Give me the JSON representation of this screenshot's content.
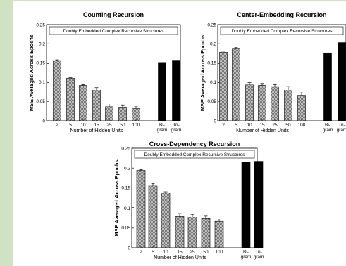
{
  "colors": {
    "background": "#cfe3c2",
    "sheet": "#ffffff",
    "srn_bar": "#bdbdbd",
    "ngram_bar": "#000000"
  },
  "chart_data": [
    {
      "type": "bar",
      "title": "Counting Recursion",
      "box_label": "Doubly Embedded Complex Recursive Structures",
      "ylabel": "MSE Averaged Across Epochs",
      "xlabel": "Number of Hidden Units",
      "ylim": [
        0,
        0.25
      ],
      "yticks": [
        "0",
        "0.05",
        "0.1",
        "0.15",
        "0.2",
        "0.25"
      ],
      "categories": [
        "2",
        "5",
        "10",
        "15",
        "25",
        "50",
        "100"
      ],
      "values": [
        0.156,
        0.11,
        0.091,
        0.08,
        0.037,
        0.034,
        0.032
      ],
      "errors": [
        0.002,
        0.003,
        0.004,
        0.005,
        0.006,
        0.006,
        0.005
      ],
      "ngram_categories": [
        [
          "Bi-",
          "gram"
        ],
        [
          "Tri-",
          "gram"
        ]
      ],
      "ngram_values": [
        0.151,
        0.157
      ]
    },
    {
      "type": "bar",
      "title": "Center-Embedding Recursion",
      "box_label": "Doubly Embedded Complex Recursive Structures",
      "ylabel": "MSE Averaged Across Epochs",
      "xlabel": "Number of Hidden Units",
      "ylim": [
        0,
        0.25
      ],
      "yticks": [
        "0",
        "0.05",
        "0.1",
        "0.15",
        "0.2",
        "0.25"
      ],
      "categories": [
        "2",
        "5",
        "10",
        "15",
        "25",
        "50",
        "100"
      ],
      "values": [
        0.178,
        0.188,
        0.094,
        0.091,
        0.088,
        0.08,
        0.065
      ],
      "errors": [
        0.002,
        0.003,
        0.006,
        0.005,
        0.007,
        0.008,
        0.009
      ],
      "ngram_categories": [
        [
          "Bi-",
          "gram"
        ],
        [
          "Tri-",
          "gram"
        ]
      ],
      "ngram_values": [
        0.176,
        0.203
      ]
    },
    {
      "type": "bar",
      "title": "Cross-Dependency Recursion",
      "box_label": "Doubly Embedded Complex Recursive Structures",
      "ylabel": "MSE Averaged Across Epochs",
      "xlabel": "Number of Hidden Units",
      "ylim": [
        0,
        0.25
      ],
      "yticks": [
        "0",
        "0.05",
        "0.1",
        "0.15",
        "0.2",
        "0.25"
      ],
      "categories": [
        "2",
        "5",
        "10",
        "15",
        "25",
        "50",
        "100"
      ],
      "values": [
        0.194,
        0.156,
        0.137,
        0.079,
        0.077,
        0.074,
        0.067
      ],
      "errors": [
        0.002,
        0.005,
        0.003,
        0.006,
        0.006,
        0.006,
        0.005
      ],
      "ngram_categories": [
        [
          "Bi-",
          "gram"
        ],
        [
          "Tri-",
          "gram"
        ]
      ],
      "ngram_values": [
        0.214,
        0.217
      ]
    }
  ]
}
